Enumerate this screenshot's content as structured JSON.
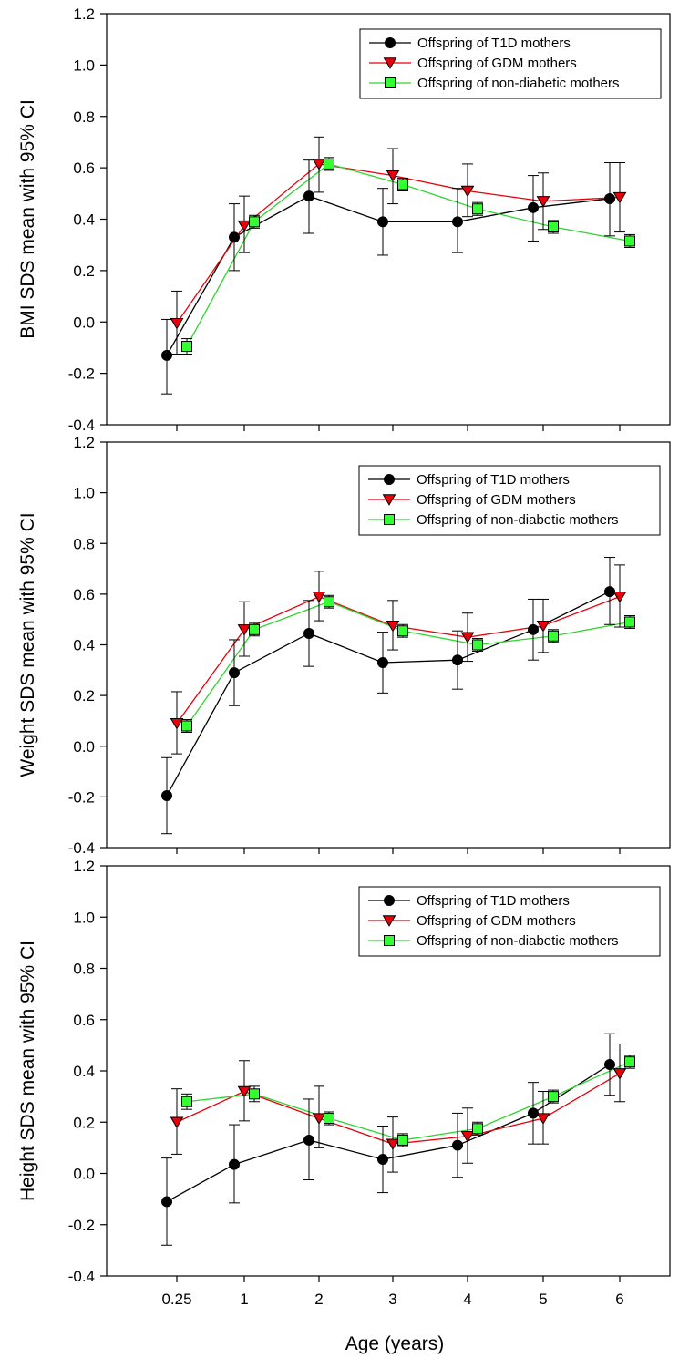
{
  "colors": {
    "t1d": "#000000",
    "gdm": "#e8000b",
    "gdm_line": "#e8000b",
    "non_diabetic": "#33ff33",
    "non_diabetic_line": "#2fd52f",
    "axis": "#000000"
  },
  "chart_data": [
    {
      "type": "line",
      "ylabel": "BMI SDS mean with 95% CI",
      "ylim": [
        -0.4,
        1.2
      ],
      "yticks": [
        "-0.4",
        "-0.2",
        "0.0",
        "0.2",
        "0.4",
        "0.6",
        "0.8",
        "1.0",
        "1.2"
      ],
      "legend_position": "top-right",
      "series": [
        {
          "name": "Offspring of T1D mothers",
          "marker": "circle",
          "x": [
            0.25,
            1,
            2,
            3,
            4,
            5,
            6
          ],
          "y": [
            -0.13,
            0.33,
            0.49,
            0.39,
            0.39,
            0.445,
            0.48
          ],
          "ci_low": [
            -0.28,
            0.2,
            0.345,
            0.26,
            0.27,
            0.315,
            0.335
          ],
          "ci_high": [
            0.01,
            0.46,
            0.63,
            0.52,
            0.52,
            0.57,
            0.62
          ]
        },
        {
          "name": "Offspring of GDM mothers",
          "marker": "triangle-down",
          "x": [
            0.25,
            1,
            2,
            3,
            4,
            5,
            6
          ],
          "y": [
            -0.005,
            0.375,
            0.615,
            0.57,
            0.51,
            0.47,
            0.485
          ],
          "ci_low": [
            -0.125,
            0.27,
            0.505,
            0.46,
            0.41,
            0.36,
            0.35
          ],
          "ci_high": [
            0.12,
            0.49,
            0.72,
            0.675,
            0.615,
            0.58,
            0.62
          ]
        },
        {
          "name": "Offspring of non-diabetic  mothers",
          "marker": "square",
          "x": [
            0.25,
            1,
            2,
            3,
            4,
            5,
            6
          ],
          "y": [
            -0.095,
            0.39,
            0.615,
            0.535,
            0.44,
            0.37,
            0.315
          ],
          "ci_low": [
            -0.125,
            0.365,
            0.59,
            0.51,
            0.415,
            0.345,
            0.29
          ],
          "ci_high": [
            -0.065,
            0.415,
            0.64,
            0.56,
            0.465,
            0.395,
            0.34
          ]
        }
      ]
    },
    {
      "type": "line",
      "ylabel": "Weight SDS mean with 95% CI",
      "ylim": [
        -0.4,
        1.2
      ],
      "yticks": [
        "-0.4",
        "-0.2",
        "0.0",
        "0.2",
        "0.4",
        "0.6",
        "0.8",
        "1.0",
        "1.2"
      ],
      "legend_position": "top-right",
      "series": [
        {
          "name": "Offspring of T1D mothers",
          "marker": "circle",
          "x": [
            0.25,
            1,
            2,
            3,
            4,
            5,
            6
          ],
          "y": [
            -0.195,
            0.29,
            0.445,
            0.33,
            0.34,
            0.46,
            0.61
          ],
          "ci_low": [
            -0.345,
            0.16,
            0.315,
            0.21,
            0.225,
            0.34,
            0.48
          ],
          "ci_high": [
            -0.045,
            0.42,
            0.575,
            0.45,
            0.455,
            0.58,
            0.745
          ]
        },
        {
          "name": "Offspring of GDM mothers",
          "marker": "triangle-down",
          "x": [
            0.25,
            1,
            2,
            3,
            4,
            5,
            6
          ],
          "y": [
            0.09,
            0.46,
            0.59,
            0.475,
            0.43,
            0.475,
            0.59
          ],
          "ci_low": [
            -0.03,
            0.355,
            0.495,
            0.38,
            0.335,
            0.37,
            0.47
          ],
          "ci_high": [
            0.215,
            0.57,
            0.69,
            0.575,
            0.525,
            0.58,
            0.715
          ]
        },
        {
          "name": "Offspring of non-diabetic  mothers",
          "marker": "square",
          "x": [
            0.25,
            1,
            2,
            3,
            4,
            5,
            6
          ],
          "y": [
            0.08,
            0.46,
            0.57,
            0.455,
            0.4,
            0.435,
            0.49
          ],
          "ci_low": [
            0.055,
            0.435,
            0.545,
            0.43,
            0.375,
            0.41,
            0.465
          ],
          "ci_high": [
            0.105,
            0.485,
            0.595,
            0.48,
            0.425,
            0.46,
            0.515
          ]
        }
      ]
    },
    {
      "type": "line",
      "ylabel": "Height SDS mean with 95% CI",
      "xlabel": "Age (years)",
      "xticks": [
        "0.25",
        "1",
        "2",
        "3",
        "4",
        "5",
        "6"
      ],
      "ylim": [
        -0.4,
        1.2
      ],
      "yticks": [
        "-0.4",
        "-0.2",
        "0.0",
        "0.2",
        "0.4",
        "0.6",
        "0.8",
        "1.0",
        "1.2"
      ],
      "legend_position": "top-right",
      "series": [
        {
          "name": "Offspring of T1D mothers",
          "marker": "circle",
          "x": [
            0.25,
            1,
            2,
            3,
            4,
            5,
            6
          ],
          "y": [
            -0.11,
            0.035,
            0.13,
            0.055,
            0.11,
            0.235,
            0.425
          ],
          "ci_low": [
            -0.28,
            -0.115,
            -0.025,
            -0.075,
            -0.015,
            0.115,
            0.305
          ],
          "ci_high": [
            0.06,
            0.19,
            0.29,
            0.185,
            0.235,
            0.355,
            0.545
          ]
        },
        {
          "name": "Offspring of GDM mothers",
          "marker": "triangle-down",
          "x": [
            0.25,
            1,
            2,
            3,
            4,
            5,
            6
          ],
          "y": [
            0.2,
            0.32,
            0.215,
            0.115,
            0.145,
            0.215,
            0.39
          ],
          "ci_low": [
            0.075,
            0.205,
            0.1,
            0.005,
            0.04,
            0.115,
            0.28
          ],
          "ci_high": [
            0.33,
            0.44,
            0.34,
            0.22,
            0.255,
            0.32,
            0.505
          ]
        },
        {
          "name": "Offspring of non-diabetic  mothers",
          "marker": "square",
          "x": [
            0.25,
            1,
            2,
            3,
            4,
            5,
            6
          ],
          "y": [
            0.28,
            0.31,
            0.215,
            0.13,
            0.175,
            0.3,
            0.435
          ],
          "ci_low": [
            0.25,
            0.28,
            0.19,
            0.105,
            0.15,
            0.275,
            0.41
          ],
          "ci_high": [
            0.31,
            0.34,
            0.24,
            0.155,
            0.2,
            0.325,
            0.46
          ]
        }
      ]
    }
  ]
}
